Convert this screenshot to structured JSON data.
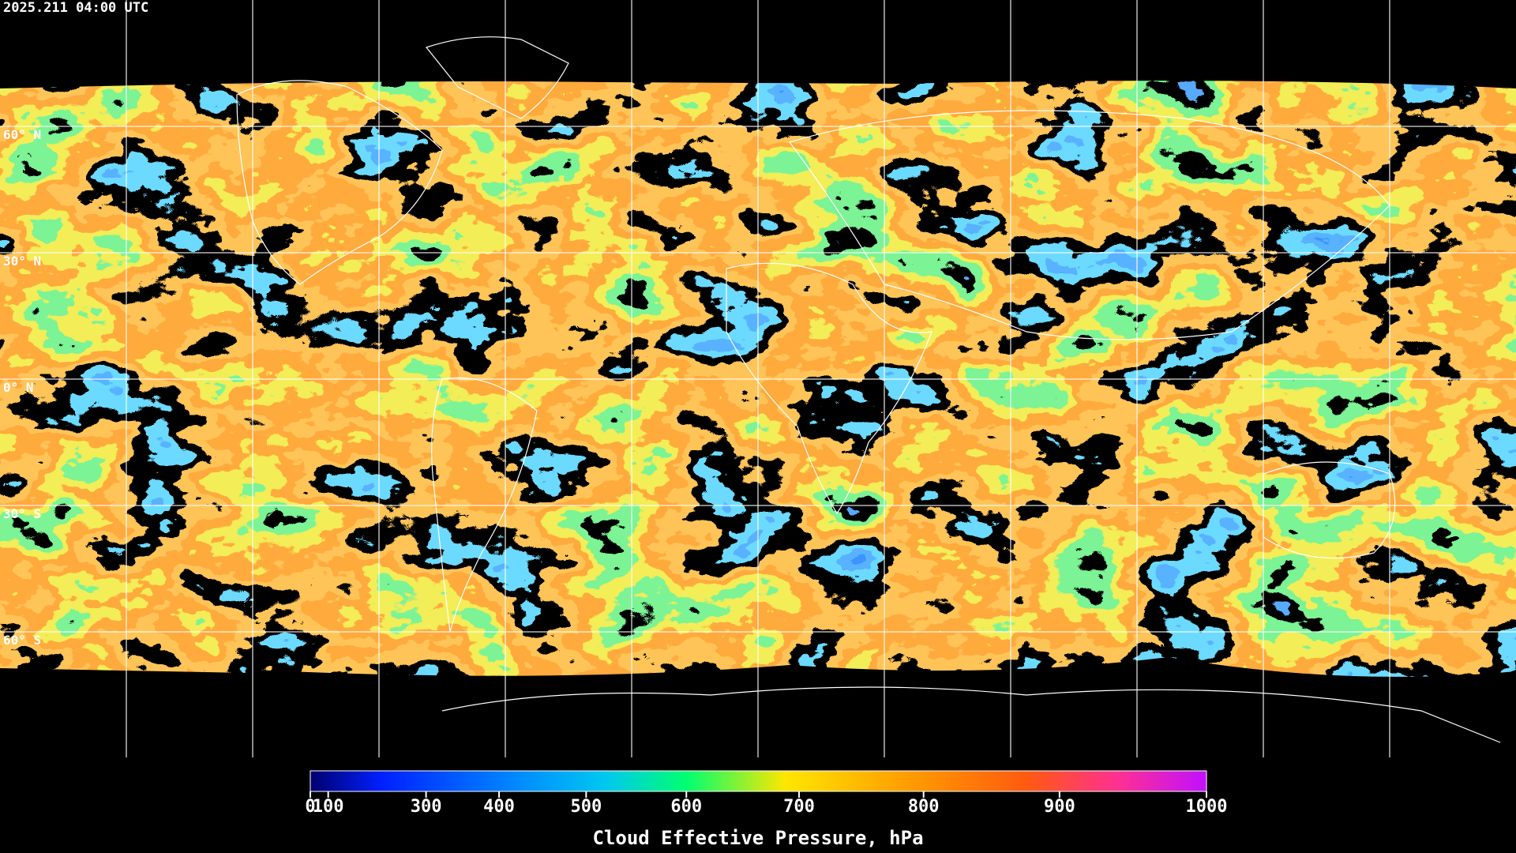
{
  "header": {
    "timestamp": "2025.211 04:00 UTC"
  },
  "map": {
    "latitude_labels": [
      "60° N",
      "30° N",
      "0° N",
      "30° S",
      "60° S"
    ]
  },
  "colorbar": {
    "title": "Cloud Effective Pressure, hPa",
    "range": [
      0,
      1000
    ],
    "ticks": [
      0,
      100,
      300,
      400,
      500,
      600,
      700,
      800,
      900,
      1000
    ]
  }
}
